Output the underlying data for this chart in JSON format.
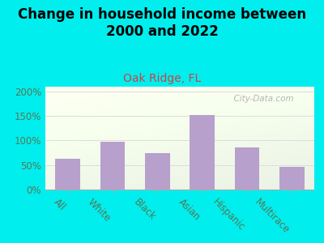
{
  "title": "Change in household income between\n2000 and 2022",
  "subtitle": "Oak Ridge, FL",
  "categories": [
    "All",
    "White",
    "Black",
    "Asian",
    "Hispanic",
    "Multirace"
  ],
  "values": [
    63,
    98,
    74,
    152,
    85,
    46
  ],
  "bar_color": "#b8a0cc",
  "title_fontsize": 12,
  "subtitle_fontsize": 10,
  "subtitle_color": "#cc4444",
  "background_color": "#00eeee",
  "ylim": [
    0,
    210
  ],
  "yticks": [
    0,
    50,
    100,
    150,
    200
  ],
  "ytick_labels": [
    "0%",
    "50%",
    "100%",
    "150%",
    "200%"
  ],
  "watermark": "  City-Data.com",
  "watermark_color": "#aaaaaa",
  "grid_color": "#dddddd",
  "tick_label_color": "#557755",
  "ytick_color": "#557755"
}
